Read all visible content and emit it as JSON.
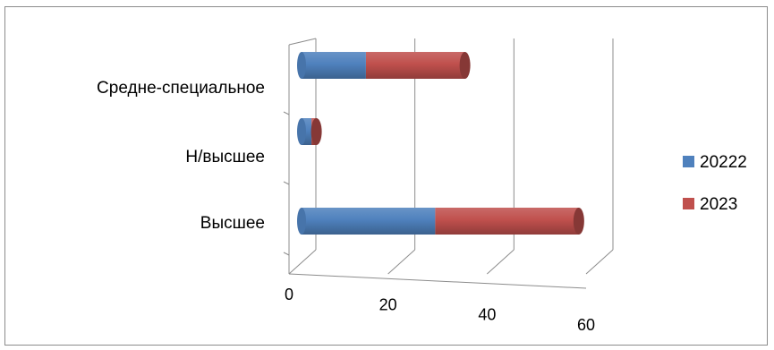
{
  "chart_data": {
    "type": "bar",
    "orientation": "horizontal",
    "stacked": true,
    "style": "3d-cylinder",
    "categories": [
      "Высшее",
      "Н/высшее",
      "Средне-специальное"
    ],
    "series": [
      {
        "name": "20222",
        "color": "#4F81BD",
        "values": [
          27,
          2,
          13
        ]
      },
      {
        "name": "2023",
        "color": "#C0504D",
        "values": [
          29,
          1,
          20
        ]
      }
    ],
    "x_ticks": [
      "0",
      "20",
      "40",
      "60"
    ],
    "xlim": [
      0,
      60
    ],
    "grid": true,
    "legend_position": "right",
    "title": "",
    "xlabel": "",
    "ylabel": ""
  }
}
